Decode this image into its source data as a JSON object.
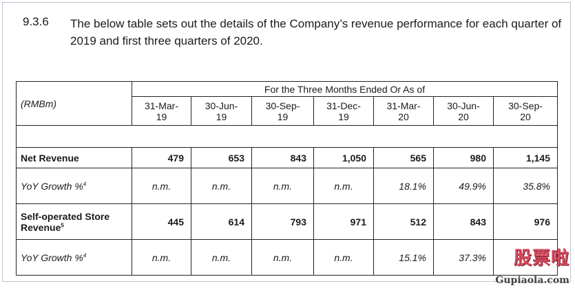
{
  "paragraph": {
    "number": "9.3.6",
    "text": "The below table sets out the details of the Company’s revenue performance for each quarter of 2019 and first three quarters of 2020."
  },
  "table": {
    "unit_label": "(RMBm)",
    "span_header": "For the Three Months Ended Or As of",
    "columns": [
      {
        "line1": "31-Mar-",
        "line2": "19"
      },
      {
        "line1": "30-Jun-",
        "line2": "19"
      },
      {
        "line1": "30-Sep-",
        "line2": "19"
      },
      {
        "line1": "31-Dec-",
        "line2": "19"
      },
      {
        "line1": "31-Mar-",
        "line2": "20"
      },
      {
        "line1": "30-Jun-",
        "line2": "20"
      },
      {
        "line1": "30-Sep-",
        "line2": "20"
      }
    ],
    "rows": {
      "net_revenue": {
        "label": "Net Revenue",
        "values": [
          "479",
          "653",
          "843",
          "1,050",
          "565",
          "980",
          "1,145"
        ]
      },
      "yoy_growth_1": {
        "label": "YoY Growth %",
        "footnote": "4",
        "values": [
          "n.m.",
          "n.m.",
          "n.m.",
          "n.m.",
          "18.1%",
          "49.9%",
          "35.8%"
        ]
      },
      "store_revenue": {
        "label_line1": "Self-operated Store",
        "label_line2": "Revenue",
        "footnote": "5",
        "values": [
          "445",
          "614",
          "793",
          "971",
          "512",
          "843",
          "976"
        ]
      },
      "yoy_growth_2": {
        "label": "YoY Growth %",
        "footnote": "4",
        "values": [
          "n.m.",
          "n.m.",
          "n.m.",
          "n.m.",
          "15.1%",
          "37.3%",
          ""
        ]
      }
    }
  },
  "watermark": {
    "text": "股票啦",
    "url": "Gupiaola.com"
  },
  "colors": {
    "text": "#1a1a1a",
    "border": "#222222",
    "watermark": "#d64a5e"
  }
}
